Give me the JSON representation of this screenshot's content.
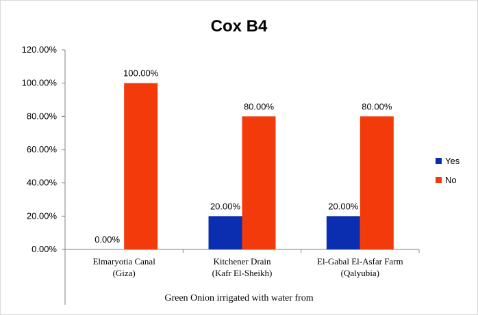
{
  "chart_data": {
    "type": "bar",
    "title": "Cox B4",
    "xlabel": "Green Onion irrigated with water from",
    "ylabel": "",
    "ylim": [
      0,
      120
    ],
    "yticks": [
      "0.00%",
      "20.00%",
      "40.00%",
      "60.00%",
      "80.00%",
      "100.00%",
      "120.00%"
    ],
    "categories": [
      [
        "Elmaryotia Canal",
        "(Giza)"
      ],
      [
        "Kitchener Drain",
        "(Kafr El-Sheikh)"
      ],
      [
        "El-Gabal El-Asfar Farm",
        "(Qalyubia)"
      ]
    ],
    "series": [
      {
        "name": "Yes",
        "color": "#0b2db0",
        "values": [
          0,
          20,
          20
        ],
        "labels": [
          "0.00%",
          "20.00%",
          "20.00%"
        ]
      },
      {
        "name": "No",
        "color": "#f33a0a",
        "values": [
          100,
          80,
          80
        ],
        "labels": [
          "100.00%",
          "80.00%",
          "80.00%"
        ]
      }
    ],
    "legend_position": "right",
    "grid": false
  }
}
